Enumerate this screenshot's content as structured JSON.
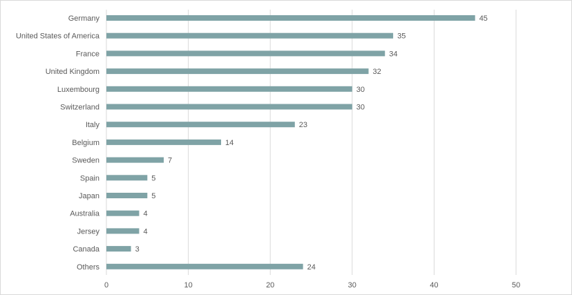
{
  "chart_data": {
    "type": "bar",
    "orientation": "horizontal",
    "categories": [
      "Germany",
      "United States of America",
      "France",
      "United Kingdom",
      "Luxembourg",
      "Switzerland",
      "Italy",
      "Belgium",
      "Sweden",
      "Spain",
      "Japan",
      "Australia",
      "Jersey",
      "Canada",
      "Others"
    ],
    "values": [
      45,
      35,
      34,
      32,
      30,
      30,
      23,
      14,
      7,
      5,
      5,
      4,
      4,
      3,
      24
    ],
    "xlim": [
      0,
      50
    ],
    "xticks": [
      0,
      10,
      20,
      30,
      40,
      50
    ],
    "grid": true,
    "legend": "none",
    "bar_color": "#7fa3a6",
    "data_labels": true
  }
}
